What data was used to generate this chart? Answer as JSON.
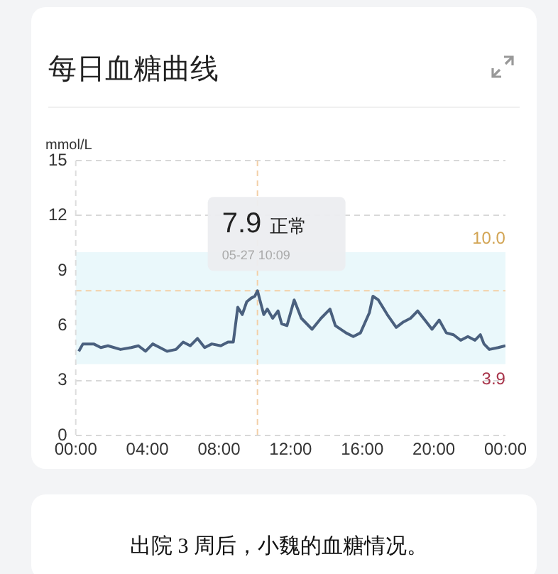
{
  "chart_data": {
    "type": "line",
    "title": "每日血糖曲线",
    "ylabel": "mmol/L",
    "x": [
      0.17,
      0.4,
      1.0,
      1.4,
      1.8,
      2.5,
      3.1,
      3.5,
      3.9,
      4.3,
      4.7,
      5.1,
      5.6,
      6.0,
      6.4,
      6.8,
      7.2,
      7.6,
      8.1,
      8.5,
      8.8,
      9.05,
      9.3,
      9.55,
      9.8,
      10.0,
      10.15,
      10.5,
      10.7,
      11.0,
      11.3,
      11.5,
      11.8,
      12.2,
      12.6,
      13.2,
      13.7,
      14.2,
      14.5,
      15.1,
      15.5,
      15.9,
      16.4,
      16.6,
      16.9,
      17.4,
      17.9,
      18.3,
      18.7,
      19.1,
      19.5,
      19.9,
      20.3,
      20.7,
      21.1,
      21.5,
      21.9,
      22.3,
      22.6,
      22.8,
      23.1,
      23.6,
      24.0
    ],
    "series": [
      {
        "color": "#4a607e",
        "values": [
          4.6,
          5.0,
          5.0,
          4.8,
          4.9,
          4.7,
          4.8,
          4.9,
          4.6,
          5.0,
          4.8,
          4.6,
          4.7,
          5.1,
          4.9,
          5.3,
          4.8,
          5.0,
          4.9,
          5.1,
          5.1,
          7.0,
          6.6,
          7.3,
          7.5,
          7.6,
          7.9,
          6.6,
          6.9,
          6.4,
          6.8,
          6.1,
          6.0,
          7.4,
          6.4,
          5.8,
          6.4,
          6.9,
          6.0,
          5.6,
          5.4,
          5.6,
          6.7,
          7.6,
          7.4,
          6.6,
          5.9,
          6.2,
          6.4,
          6.8,
          6.3,
          5.8,
          6.3,
          5.6,
          5.5,
          5.2,
          5.4,
          5.2,
          5.5,
          5.0,
          4.7,
          4.8,
          4.9
        ]
      }
    ],
    "xlim": [
      0,
      24
    ],
    "xticks": [
      {
        "value": 0,
        "label": "00:00"
      },
      {
        "value": 4,
        "label": "04:00"
      },
      {
        "value": 8,
        "label": "08:00"
      },
      {
        "value": 12,
        "label": "12:00"
      },
      {
        "value": 16,
        "label": "16:00"
      },
      {
        "value": 20,
        "label": "20:00"
      },
      {
        "value": 24,
        "label": "00:00"
      }
    ],
    "ylim": [
      0,
      15
    ],
    "yticks": [
      0,
      3,
      6,
      9,
      12,
      15
    ],
    "grid": "y",
    "marker": "none",
    "line_style": "solid",
    "bands": [
      {
        "axis": "y",
        "from": 3.9,
        "to": 10.0,
        "color": "#eaf8fb"
      }
    ],
    "ref_lines": [
      {
        "axis": "y",
        "value": 7.9,
        "color": "#f3cfa6",
        "line_style": "dashed"
      },
      {
        "axis": "x",
        "value": 10.15,
        "color": "#f3cfa6",
        "line_style": "dashed"
      }
    ],
    "annotations": [
      "7.9",
      "正常",
      "05-27 10:09",
      {
        "text": "10.0",
        "y": 10.0
      },
      {
        "text": "3.9",
        "y": 3.9
      },
      "出院 3 周后，小魏的血糖情况。"
    ]
  }
}
